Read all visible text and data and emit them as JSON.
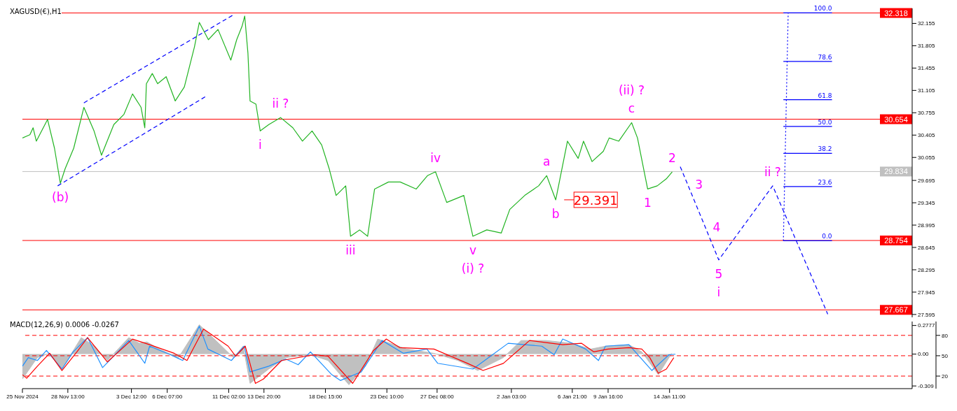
{
  "chart_data": [
    {
      "type": "line",
      "title": "XAGUSD(€),H1",
      "xlim": [
        "2024-11-25T00:00",
        "2025-02-02T09:00"
      ],
      "ylim": [
        27.55,
        32.39
      ],
      "yticks": [
        32.155,
        31.805,
        31.455,
        31.105,
        30.755,
        30.405,
        30.055,
        29.695,
        29.345,
        28.995,
        28.645,
        28.295,
        27.945,
        27.595
      ],
      "tick_labels": "y",
      "series": [
        {
          "color": "#22b422",
          "x": [
            "2024-11-25T00:00",
            "2024-11-25T14:00",
            "2024-11-25T20:00",
            "2024-11-26T02:00",
            "2024-11-26T23:00",
            "2024-11-27T12:00",
            "2024-11-27T23:00",
            "2024-11-28T08:00",
            "2024-11-29T00:00",
            "2024-11-29T19:00",
            "2024-11-30T14:00",
            "2024-12-01T04:00",
            "2024-12-02T03:00",
            "2024-12-02T22:00",
            "2024-12-03T14:00",
            "2024-12-04T06:00",
            "2024-12-04T13:00",
            "2024-12-04T16:00",
            "2024-12-05T03:00",
            "2024-12-05T13:00",
            "2024-12-06T05:00",
            "2024-12-06T22:00",
            "2024-12-07T15:00",
            "2024-12-08T10:00",
            "2024-12-08T19:00",
            "2024-12-09T12:00",
            "2024-12-10T06:00",
            "2024-12-11T06:00",
            "2024-12-11T17:00",
            "2024-12-12T03:00",
            "2024-12-12T08:00",
            "2024-12-12T14:00",
            "2024-12-12T18:00",
            "2024-12-13T05:00",
            "2024-12-13T13:00",
            "2024-12-14T05:00",
            "2024-12-15T03:00",
            "2024-12-16T02:00",
            "2024-12-16T20:00",
            "2024-12-17T14:00",
            "2024-12-18T08:00",
            "2024-12-18T22:00",
            "2024-12-19T11:00",
            "2024-12-20T05:00",
            "2024-12-20T14:00",
            "2024-12-21T07:00",
            "2024-12-21T22:00",
            "2024-12-22T11:00",
            "2024-12-23T13:00",
            "2024-12-24T11:00",
            "2024-12-25T17:00",
            "2024-12-26T14:00",
            "2024-12-27T05:00",
            "2024-12-28T02:00",
            "2024-12-29T10:00",
            "2024-12-30T03:00",
            "2024-12-31T05:00",
            "2025-01-01T08:00",
            "2025-01-02T00:00",
            "2025-01-03T04:00",
            "2025-01-04T06:00",
            "2025-01-04T21:00",
            "2025-01-05T14:00",
            "2025-01-06T12:00",
            "2025-01-07T08:00",
            "2025-01-07T18:00",
            "2025-01-08T10:00",
            "2025-01-09T07:00",
            "2025-01-09T18:00",
            "2025-01-10T12:00",
            "2025-01-11T12:00",
            "2025-01-11T23:00",
            "2025-01-12T18:00",
            "2025-01-13T12:00",
            "2025-01-14T05:00",
            "2025-01-14T16:00"
          ],
          "values": [
            30.36,
            30.41,
            30.52,
            30.31,
            30.65,
            30.2,
            29.65,
            29.88,
            30.2,
            30.84,
            30.47,
            30.09,
            30.57,
            30.73,
            31.05,
            30.84,
            30.52,
            31.21,
            31.37,
            31.21,
            31.32,
            30.94,
            31.16,
            31.79,
            32.17,
            31.9,
            32.06,
            31.58,
            31.9,
            32.11,
            32.27,
            31.69,
            30.94,
            30.89,
            30.47,
            30.57,
            30.68,
            30.52,
            30.31,
            30.47,
            30.25,
            29.88,
            29.46,
            29.61,
            28.82,
            28.92,
            28.82,
            29.56,
            29.67,
            29.67,
            29.56,
            29.77,
            29.83,
            29.35,
            29.46,
            28.82,
            28.92,
            28.87,
            29.24,
            29.46,
            29.61,
            29.77,
            29.39,
            30.31,
            30.04,
            30.31,
            29.99,
            30.15,
            30.36,
            30.31,
            30.6,
            30.36,
            29.56,
            29.61,
            29.72,
            29.83
          ]
        },
        {
          "color": "#0000ff",
          "line_style": "dashed",
          "x": [
            "2024-11-29T19:00",
            "2024-12-11T11:00"
          ],
          "values": [
            30.91,
            32.29
          ]
        },
        {
          "color": "#0000ff",
          "line_style": "dashed",
          "x": [
            "2024-11-27T18:00",
            "2024-12-09T09:00"
          ],
          "values": [
            29.61,
            31.02
          ]
        },
        {
          "color": "#0000ff",
          "line_style": "dashed",
          "x": [
            "2025-01-15T07:00",
            "2025-01-15T21:00",
            "2025-01-17T06:00",
            "2025-01-18T07:00",
            "2025-01-22T12:00",
            "2025-01-26T19:00"
          ],
          "values": [
            29.91,
            29.63,
            28.96,
            28.45,
            29.61,
            27.6
          ]
        },
        {
          "color": "#0000ff",
          "line_style": "dotted",
          "x": [
            "2025-01-23T08:00",
            "2025-01-23T17:00"
          ],
          "values": [
            28.75,
            32.32
          ]
        },
        {
          "name": "100.0",
          "color": "#0000ff",
          "x": [
            "2025-01-23T08:00",
            "2025-01-27T03:00"
          ],
          "values": [
            32.32,
            32.32
          ]
        },
        {
          "name": "78.6",
          "color": "#0000ff",
          "x": [
            "2025-01-23T08:00",
            "2025-01-27T03:00"
          ],
          "values": [
            31.56,
            31.56
          ]
        },
        {
          "name": "61.8",
          "color": "#0000ff",
          "x": [
            "2025-01-23T08:00",
            "2025-01-27T03:00"
          ],
          "values": [
            30.96,
            30.96
          ]
        },
        {
          "name": "50.0",
          "color": "#0000ff",
          "x": [
            "2025-01-23T08:00",
            "2025-01-27T03:00"
          ],
          "values": [
            30.54,
            30.54
          ]
        },
        {
          "name": "38.2",
          "color": "#0000ff",
          "x": [
            "2025-01-23T08:00",
            "2025-01-27T03:00"
          ],
          "values": [
            30.12,
            30.12
          ]
        },
        {
          "name": "23.6",
          "color": "#0000ff",
          "x": [
            "2025-01-23T08:00",
            "2025-01-27T03:00"
          ],
          "values": [
            29.6,
            29.6
          ]
        },
        {
          "name": "0.0",
          "color": "#0000ff",
          "x": [
            "2025-01-23T08:00",
            "2025-01-27T03:00"
          ],
          "values": [
            28.75,
            28.75
          ]
        }
      ],
      "ref_lines": [
        {
          "axis": "y",
          "value": 32.318,
          "label": "32.318",
          "color": "#ff0000"
        },
        {
          "axis": "y",
          "value": 30.654,
          "label": "30.654",
          "color": "#ff0000"
        },
        {
          "axis": "y",
          "value": 29.834,
          "label": "29.834",
          "color": "#c0c0c0"
        },
        {
          "axis": "y",
          "value": 28.754,
          "label": "28.754",
          "color": "#ff0000"
        },
        {
          "axis": "y",
          "value": 27.667,
          "label": "27.667",
          "color": "#ff0000"
        }
      ],
      "annotations": [
        {
          "text": "29.391",
          "x": "2025-01-05T14:00",
          "y": 29.391
        },
        {
          "text": "(b)",
          "x": "2024-11-27T23:00",
          "y": 29.65
        },
        {
          "text": "i",
          "x": "2024-12-13T13:00",
          "y": 30.47
        },
        {
          "text": "ii ?",
          "x": "2024-12-15T03:00",
          "y": 30.68
        },
        {
          "text": "iii",
          "x": "2024-12-20T14:00",
          "y": 28.82
        },
        {
          "text": "iv",
          "x": "2024-12-27T05:00",
          "y": 29.83
        },
        {
          "text": "v",
          "x": "2024-12-30T03:00",
          "y": 28.82
        },
        {
          "text": "(i) ?",
          "x": "2024-12-30T03:00",
          "y": 28.82
        },
        {
          "text": "a",
          "x": "2025-01-04T21:00",
          "y": 29.77
        },
        {
          "text": "b",
          "x": "2025-01-05T14:00",
          "y": 29.39
        },
        {
          "text": "c",
          "x": "2025-01-11T12:00",
          "y": 30.6
        },
        {
          "text": "(ii) ?",
          "x": "2025-01-11T12:00",
          "y": 30.6
        },
        {
          "text": "1",
          "x": "2025-01-12T18:00",
          "y": 29.56
        },
        {
          "text": "2",
          "x": "2025-01-14T16:00",
          "y": 29.83
        },
        {
          "text": "3",
          "x": "2025-01-15T21:00",
          "y": 29.63
        },
        {
          "text": "4",
          "x": "2025-01-17T06:00",
          "y": 28.96
        },
        {
          "text": "5",
          "x": "2025-01-18T07:00",
          "y": 28.45
        },
        {
          "text": "i",
          "x": "2025-01-18T07:00",
          "y": 28.45
        },
        {
          "text": "ii ?",
          "x": "2025-01-22T12:00",
          "y": 29.61
        }
      ]
    },
    {
      "type": "line",
      "title": "MACD(12,26,9) 0.0006 -0.0267",
      "xlim": [
        "2024-11-25T00:00",
        "2025-02-02T09:00"
      ],
      "ylim": [
        -0.335,
        0.316
      ],
      "xticks": [
        {
          "value": "2024-11-25T00:00",
          "label": "25 Nov 2024"
        },
        {
          "value": "2024-11-28T13:00",
          "label": "28 Nov 13:00"
        },
        {
          "value": "2024-12-03T12:00",
          "label": "3 Dec 12:00"
        },
        {
          "value": "2024-12-06T07:00",
          "label": "6 Dec 07:00"
        },
        {
          "value": "2024-12-11T02:00",
          "label": "11 Dec 02:00"
        },
        {
          "value": "2024-12-13T20:00",
          "label": "13 Dec 20:00"
        },
        {
          "value": "2024-12-18T15:00",
          "label": "18 Dec 15:00"
        },
        {
          "value": "2024-12-23T10:00",
          "label": "23 Dec 10:00"
        },
        {
          "value": "2024-12-27T08:00",
          "label": "27 Dec 08:00"
        },
        {
          "value": "2025-01-02T03:00",
          "label": "2 Jan 03:00"
        },
        {
          "value": "2025-01-06T21:00",
          "label": "6 Jan 21:00"
        },
        {
          "value": "2025-01-09T16:00",
          "label": "9 Jan 16:00"
        },
        {
          "value": "2025-01-14T11:00",
          "label": "14 Jan 11:00"
        }
      ],
      "yticks": [
        0.2777,
        {
          "value": 0,
          "label": "0.00"
        },
        -0.309
      ],
      "y2lim": [
        1.5,
        100.4
      ],
      "y2ticks": [
        80,
        50,
        20
      ],
      "series": [
        {
          "type": "area",
          "color": "#c0c0c0",
          "x": [
            "2024-11-25T00:00",
            "2024-11-26T04:00",
            "2024-11-27T03:00",
            "2024-11-28T02:00",
            "2024-11-29T14:00",
            "2024-11-30T15:00",
            "2024-12-01T15:00",
            "2024-12-03T07:00",
            "2024-12-04T03:00",
            "2024-12-04T17:00",
            "2024-12-05T16:00",
            "2024-12-07T04:00",
            "2024-12-08T19:00",
            "2024-12-10T02:00",
            "2024-12-11T11:00",
            "2024-12-12T05:00",
            "2024-12-12T18:00",
            "2024-12-14T05:00",
            "2024-12-15T13:00",
            "2024-12-17T11:00",
            "2024-12-18T20:00",
            "2024-12-20T11:00",
            "2024-12-21T18:00",
            "2024-12-22T17:00",
            "2024-12-24T23:00",
            "2024-12-27T02:00",
            "2024-12-28T23:00",
            "2024-12-30T12:00",
            "2025-01-01T12:00",
            "2025-01-02T21:00",
            "2025-01-04T20:00",
            "2025-01-06T19:00",
            "2025-01-08T08:00",
            "2025-01-09T11:00",
            "2025-01-11T07:00",
            "2025-01-12T07:00",
            "2025-01-13T14:00",
            "2025-01-14T15:00"
          ],
          "values": [
            -0.242,
            -0.034,
            0.008,
            -0.145,
            0.16,
            0.077,
            -0.062,
            0.16,
            0.105,
            0.118,
            0.049,
            -0.034,
            0.285,
            0.132,
            -0.034,
            0.077,
            -0.284,
            -0.145,
            -0.034,
            -0.006,
            -0.062,
            -0.297,
            -0.117,
            0.146,
            0.049,
            0.008,
            -0.062,
            -0.159,
            -0.034,
            0.132,
            0.132,
            0.105,
            0.049,
            0.077,
            0.091,
            0.022,
            -0.2,
            0.008
          ]
        },
        {
          "color": "#1e90ff",
          "x": [
            "2024-11-25T00:00",
            "2024-11-25T11:00",
            "2024-11-26T04:00",
            "2024-11-26T21:00",
            "2024-11-28T02:00",
            "2024-11-28T23:00",
            "2024-11-30T02:00",
            "2024-12-01T06:00",
            "2024-12-03T07:00",
            "2024-12-04T13:00",
            "2024-12-04T22:00",
            "2024-12-06T13:00",
            "2024-12-07T12:00",
            "2024-12-08T19:00",
            "2024-12-09T11:00",
            "2024-12-11T07:00",
            "2024-12-12T07:00",
            "2024-12-12T18:00",
            "2024-12-14T05:00",
            "2024-12-15T13:00",
            "2024-12-16T12:00",
            "2024-12-17T11:00",
            "2024-12-19T03:00",
            "2024-12-19T19:00",
            "2024-12-21T10:00",
            "2024-12-23T01:00",
            "2024-12-24T17:00",
            "2024-12-26T13:00",
            "2024-12-27T09:00",
            "2024-12-30T03:00",
            "2025-01-01T21:00",
            "2025-01-04T12:00",
            "2025-01-05T11:00",
            "2025-01-06T03:00",
            "2025-01-07T22:00",
            "2025-01-08T22:00",
            "2025-01-09T11:00",
            "2025-01-11T07:00",
            "2025-01-13T02:00",
            "2025-01-14T10:00",
            "2025-01-14T22:00"
          ],
          "values": [
            -0.117,
            -0.034,
            -0.062,
            0.035,
            -0.145,
            0.022,
            0.16,
            -0.131,
            0.132,
            -0.089,
            0.077,
            -0.006,
            -0.062,
            0.271,
            0.049,
            -0.062,
            0.077,
            -0.173,
            -0.117,
            -0.048,
            -0.103,
            0.022,
            -0.2,
            -0.256,
            -0.173,
            0.132,
            0.008,
            0.049,
            -0.089,
            -0.145,
            0.105,
            0.077,
            -0.006,
            0.146,
            0.049,
            -0.062,
            0.077,
            0.091,
            -0.159,
            -0.006,
            -0.001
          ]
        },
        {
          "color": "#ff0000",
          "x": [
            "2024-11-25T00:00",
            "2024-11-25T08:00",
            "2024-11-26T04:00",
            "2024-11-27T03:00",
            "2024-11-28T02:00",
            "2024-11-29T06:00",
            "2024-11-30T02:00",
            "2024-12-01T15:00",
            "2024-12-03T14:00",
            "2024-12-04T22:00",
            "2024-12-06T20:00",
            "2024-12-07T20:00",
            "2024-12-09T03:00",
            "2024-12-11T01:00",
            "2024-12-11T15:00",
            "2024-12-12T09:00",
            "2024-12-13T04:00",
            "2024-12-13T19:00",
            "2024-12-15T05:00",
            "2024-12-17T19:00",
            "2024-12-18T20:00",
            "2024-12-20T18:00",
            "2024-12-22T09:00",
            "2024-12-23T09:00",
            "2024-12-24T10:00",
            "2024-12-27T02:00",
            "2024-12-29T17:00",
            "2024-12-30T22:00",
            "2025-01-01T12:00",
            "2025-01-03T13:00",
            "2025-01-06T03:00",
            "2025-01-07T14:00",
            "2025-01-08T13:00",
            "2025-01-09T16:00",
            "2025-01-11T07:00",
            "2025-01-12T07:00",
            "2025-01-12T22:00",
            "2025-01-13T14:00",
            "2025-01-14T05:00",
            "2025-01-14T19:00"
          ],
          "values": [
            -0.2,
            -0.234,
            -0.117,
            0.008,
            -0.159,
            0.022,
            0.16,
            -0.076,
            0.146,
            0.091,
            0.008,
            -0.062,
            0.243,
            0.077,
            -0.02,
            0.077,
            -0.284,
            -0.242,
            -0.062,
            -0.006,
            -0.02,
            -0.284,
            0.035,
            0.146,
            0.063,
            0.049,
            -0.09,
            -0.159,
            -0.09,
            0.132,
            0.091,
            0.105,
            0.022,
            0.049,
            0.063,
            0.049,
            -0.034,
            -0.186,
            -0.145,
            -0.034
          ]
        }
      ],
      "ref_lines": [
        {
          "axis": "y2",
          "value": 80,
          "color": "#ff0000",
          "line_style": "dashed"
        },
        {
          "axis": "y2",
          "value": 50,
          "color": "#ff0000",
          "line_style": "dashed"
        },
        {
          "axis": "y2",
          "value": 20,
          "color": "#ff0000",
          "line_style": "dashed"
        }
      ]
    }
  ]
}
